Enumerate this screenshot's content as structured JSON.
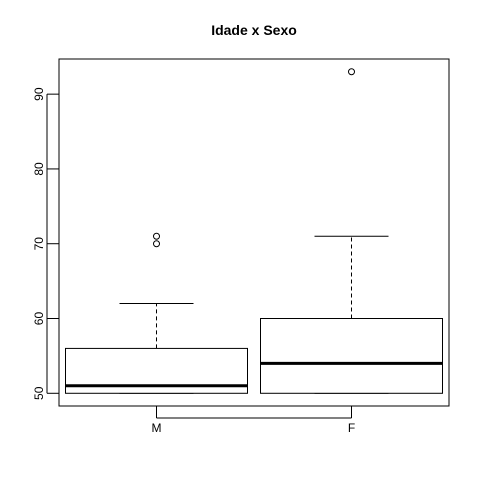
{
  "chart_data": {
    "type": "boxplot",
    "title": "Idade x Sexo",
    "xlabel": "",
    "ylabel": "",
    "categories": [
      "M",
      "F"
    ],
    "yticks": [
      50,
      60,
      70,
      80,
      90
    ],
    "ylim": [
      48.3,
      94.7
    ],
    "boxes": [
      {
        "category": "M",
        "whisker_low": 50,
        "q1": 50,
        "median": 51,
        "q3": 56,
        "whisker_high": 62,
        "outliers": [
          70,
          71
        ]
      },
      {
        "category": "F",
        "whisker_low": 50,
        "q1": 50,
        "median": 54,
        "q3": 60,
        "whisker_high": 71,
        "outliers": [
          93
        ]
      }
    ],
    "grid": false,
    "legend": "none"
  }
}
